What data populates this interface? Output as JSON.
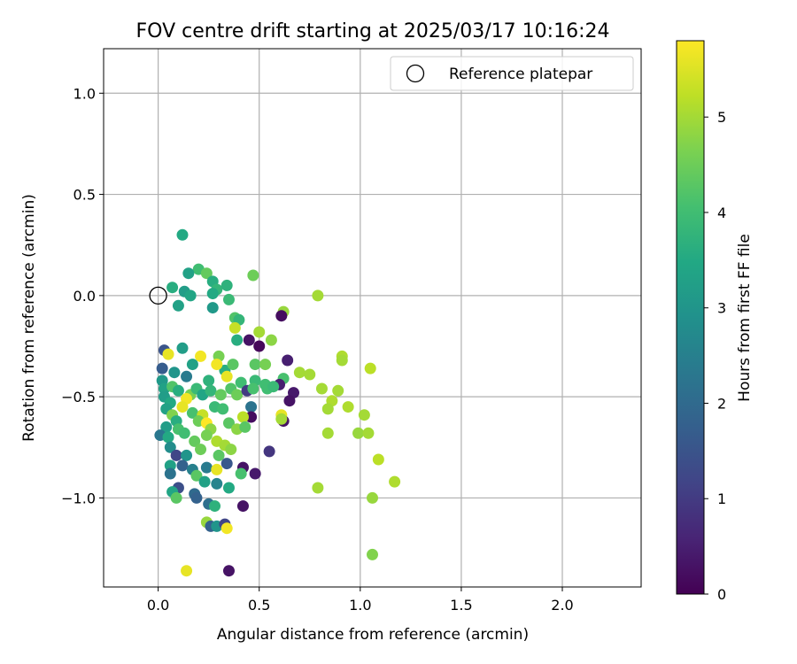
{
  "chart_data": {
    "type": "scatter",
    "title": "FOV centre drift starting at 2025/03/17 10:16:24",
    "xlabel": "Angular distance from reference (arcmin)",
    "ylabel": "Rotation from reference (arcmin)",
    "xlim": [
      -0.27,
      2.39
    ],
    "ylim": [
      -1.44,
      1.22
    ],
    "xticks": [
      0.0,
      0.5,
      1.0,
      1.5,
      2.0
    ],
    "xtick_labels": [
      "0.0",
      "0.5",
      "1.0",
      "1.5",
      "2.0"
    ],
    "yticks": [
      1.0,
      0.5,
      0.0,
      -0.5,
      -1.0
    ],
    "ytick_labels": [
      "1.0",
      "0.5",
      "0.0",
      "−0.5",
      "−1.0"
    ],
    "grid": true,
    "legend": {
      "position": "top-right",
      "entries": [
        "Reference platepar"
      ]
    },
    "colorbar": {
      "label": "Hours from first FF file",
      "colormap": "viridis",
      "range": [
        0,
        5.8
      ],
      "ticks": [
        0,
        1,
        2,
        3,
        4,
        5
      ],
      "tick_labels": [
        "0",
        "1",
        "2",
        "3",
        "4",
        "5"
      ]
    },
    "reference_point": {
      "x": 0.0,
      "y": 0.0
    },
    "series": [
      {
        "points": [
          [
            0.12,
            0.3,
            3.5
          ],
          [
            0.2,
            0.13,
            4.0
          ],
          [
            0.15,
            0.11,
            3.3
          ],
          [
            0.24,
            0.11,
            4.4
          ],
          [
            0.27,
            0.07,
            3.6
          ],
          [
            0.29,
            0.03,
            3.8
          ],
          [
            0.27,
            0.01,
            3.5
          ],
          [
            0.47,
            0.1,
            4.5
          ],
          [
            0.34,
            0.05,
            3.7
          ],
          [
            0.07,
            0.04,
            3.6
          ],
          [
            0.13,
            0.02,
            3.2
          ],
          [
            0.16,
            0.0,
            3.4
          ],
          [
            0.35,
            -0.02,
            3.9
          ],
          [
            0.79,
            0.0,
            5.0
          ],
          [
            0.1,
            -0.05,
            3.3
          ],
          [
            0.62,
            -0.08,
            4.9
          ],
          [
            0.27,
            -0.06,
            3.1
          ],
          [
            0.61,
            -0.1,
            0.2
          ],
          [
            0.38,
            -0.11,
            4.2
          ],
          [
            0.4,
            -0.12,
            3.8
          ],
          [
            0.38,
            -0.16,
            5.3
          ],
          [
            0.5,
            -0.18,
            5.0
          ],
          [
            0.45,
            -0.22,
            0.3
          ],
          [
            0.56,
            -0.22,
            4.8
          ],
          [
            0.39,
            -0.22,
            3.6
          ],
          [
            0.12,
            -0.26,
            3.2
          ],
          [
            0.03,
            -0.27,
            1.5
          ],
          [
            0.5,
            -0.25,
            0.1
          ],
          [
            0.05,
            -0.29,
            5.6
          ],
          [
            0.3,
            -0.3,
            4.6
          ],
          [
            0.21,
            -0.3,
            5.7
          ],
          [
            0.91,
            -0.3,
            5.1
          ],
          [
            0.48,
            -0.34,
            4.3
          ],
          [
            0.53,
            -0.34,
            4.6
          ],
          [
            0.64,
            -0.32,
            0.5
          ],
          [
            0.91,
            -0.32,
            5.0
          ],
          [
            0.17,
            -0.34,
            3.3
          ],
          [
            0.33,
            -0.37,
            3.6
          ],
          [
            0.37,
            -0.34,
            4.3
          ],
          [
            0.29,
            -0.34,
            5.7
          ],
          [
            0.02,
            -0.36,
            1.7
          ],
          [
            1.05,
            -0.36,
            5.2
          ],
          [
            0.08,
            -0.38,
            3.0
          ],
          [
            0.14,
            -0.4,
            2.4
          ],
          [
            0.25,
            -0.42,
            3.7
          ],
          [
            0.34,
            -0.4,
            5.6
          ],
          [
            0.41,
            -0.43,
            4.0
          ],
          [
            0.48,
            -0.42,
            3.9
          ],
          [
            0.53,
            -0.44,
            4.0
          ],
          [
            0.62,
            -0.41,
            4.1
          ],
          [
            0.7,
            -0.38,
            5.0
          ],
          [
            0.75,
            -0.39,
            5.0
          ],
          [
            0.6,
            -0.44,
            0.5
          ],
          [
            0.81,
            -0.46,
            5.0
          ],
          [
            0.67,
            -0.48,
            0.4
          ],
          [
            0.89,
            -0.47,
            5.0
          ],
          [
            0.65,
            -0.52,
            0.3
          ],
          [
            0.02,
            -0.42,
            3.1
          ],
          [
            0.03,
            -0.46,
            3.3
          ],
          [
            0.07,
            -0.45,
            4.2
          ],
          [
            0.1,
            -0.47,
            3.6
          ],
          [
            0.16,
            -0.49,
            4.6
          ],
          [
            0.19,
            -0.46,
            3.9
          ],
          [
            0.22,
            -0.49,
            3.4
          ],
          [
            0.26,
            -0.47,
            3.8
          ],
          [
            0.31,
            -0.49,
            4.4
          ],
          [
            0.36,
            -0.46,
            4.2
          ],
          [
            0.39,
            -0.49,
            4.5
          ],
          [
            0.44,
            -0.47,
            1.0
          ],
          [
            0.47,
            -0.46,
            4.1
          ],
          [
            0.54,
            -0.46,
            4.0
          ],
          [
            0.57,
            -0.45,
            3.9
          ],
          [
            0.86,
            -0.52,
            5.1
          ],
          [
            0.84,
            -0.56,
            5.0
          ],
          [
            0.94,
            -0.55,
            5.1
          ],
          [
            0.03,
            -0.5,
            3.2
          ],
          [
            0.06,
            -0.53,
            3.5
          ],
          [
            0.04,
            -0.56,
            3.3
          ],
          [
            0.14,
            -0.51,
            5.7
          ],
          [
            0.12,
            -0.55,
            5.6
          ],
          [
            0.17,
            -0.58,
            4.1
          ],
          [
            0.22,
            -0.59,
            5.3
          ],
          [
            0.28,
            -0.55,
            3.9
          ],
          [
            0.32,
            -0.56,
            4.0
          ],
          [
            0.46,
            -0.55,
            2.2
          ],
          [
            0.46,
            -0.6,
            0.2
          ],
          [
            0.61,
            -0.59,
            5.6
          ],
          [
            0.62,
            -0.62,
            0.3
          ],
          [
            0.61,
            -0.61,
            5.0
          ],
          [
            1.02,
            -0.59,
            5.0
          ],
          [
            0.07,
            -0.59,
            4.7
          ],
          [
            0.09,
            -0.62,
            3.6
          ],
          [
            0.04,
            -0.65,
            3.2
          ],
          [
            0.1,
            -0.66,
            4.1
          ],
          [
            0.2,
            -0.62,
            4.5
          ],
          [
            0.24,
            -0.63,
            5.8
          ],
          [
            0.26,
            -0.66,
            4.8
          ],
          [
            0.35,
            -0.63,
            4.3
          ],
          [
            0.39,
            -0.66,
            4.8
          ],
          [
            0.42,
            -0.6,
            5.2
          ],
          [
            0.43,
            -0.65,
            4.3
          ],
          [
            0.84,
            -0.68,
            5.0
          ],
          [
            0.99,
            -0.68,
            4.9
          ],
          [
            1.04,
            -0.68,
            5.0
          ],
          [
            0.01,
            -0.69,
            2.3
          ],
          [
            0.05,
            -0.7,
            3.5
          ],
          [
            0.13,
            -0.68,
            4.0
          ],
          [
            0.18,
            -0.72,
            4.4
          ],
          [
            0.24,
            -0.69,
            4.6
          ],
          [
            0.29,
            -0.72,
            5.1
          ],
          [
            0.33,
            -0.74,
            5.0
          ],
          [
            0.36,
            -0.76,
            4.8
          ],
          [
            0.55,
            -0.77,
            0.9
          ],
          [
            0.06,
            -0.75,
            2.8
          ],
          [
            0.09,
            -0.79,
            1.2
          ],
          [
            0.14,
            -0.79,
            3.0
          ],
          [
            0.21,
            -0.76,
            4.5
          ],
          [
            0.3,
            -0.79,
            4.3
          ],
          [
            1.09,
            -0.81,
            5.2
          ],
          [
            0.06,
            -0.84,
            3.3
          ],
          [
            0.12,
            -0.84,
            1.8
          ],
          [
            0.17,
            -0.86,
            2.5
          ],
          [
            0.24,
            -0.85,
            2.4
          ],
          [
            0.29,
            -0.86,
            5.6
          ],
          [
            0.34,
            -0.83,
            1.6
          ],
          [
            0.42,
            -0.85,
            0.3
          ],
          [
            0.41,
            -0.88,
            4.1
          ],
          [
            0.48,
            -0.88,
            0.4
          ],
          [
            0.06,
            -0.88,
            2.2
          ],
          [
            0.19,
            -0.89,
            4.3
          ],
          [
            0.23,
            -0.92,
            3.3
          ],
          [
            0.29,
            -0.93,
            2.6
          ],
          [
            0.35,
            -0.95,
            3.5
          ],
          [
            0.1,
            -0.95,
            1.4
          ],
          [
            0.07,
            -0.97,
            3.4
          ],
          [
            0.18,
            -0.98,
            2.0
          ],
          [
            0.09,
            -1.0,
            4.3
          ],
          [
            0.19,
            -1.0,
            1.8
          ],
          [
            0.79,
            -0.95,
            5.0
          ],
          [
            1.17,
            -0.92,
            5.1
          ],
          [
            1.06,
            -1.0,
            4.9
          ],
          [
            0.25,
            -1.03,
            2.1
          ],
          [
            0.28,
            -1.04,
            3.7
          ],
          [
            0.42,
            -1.04,
            0.3
          ],
          [
            0.24,
            -1.12,
            4.9
          ],
          [
            0.26,
            -1.14,
            1.8
          ],
          [
            0.29,
            -1.14,
            3.0
          ],
          [
            0.33,
            -1.13,
            1.2
          ],
          [
            0.34,
            -1.15,
            5.7
          ],
          [
            1.06,
            -1.28,
            4.7
          ],
          [
            0.14,
            -1.36,
            5.6
          ],
          [
            0.35,
            -1.36,
            0.3
          ]
        ]
      }
    ]
  }
}
